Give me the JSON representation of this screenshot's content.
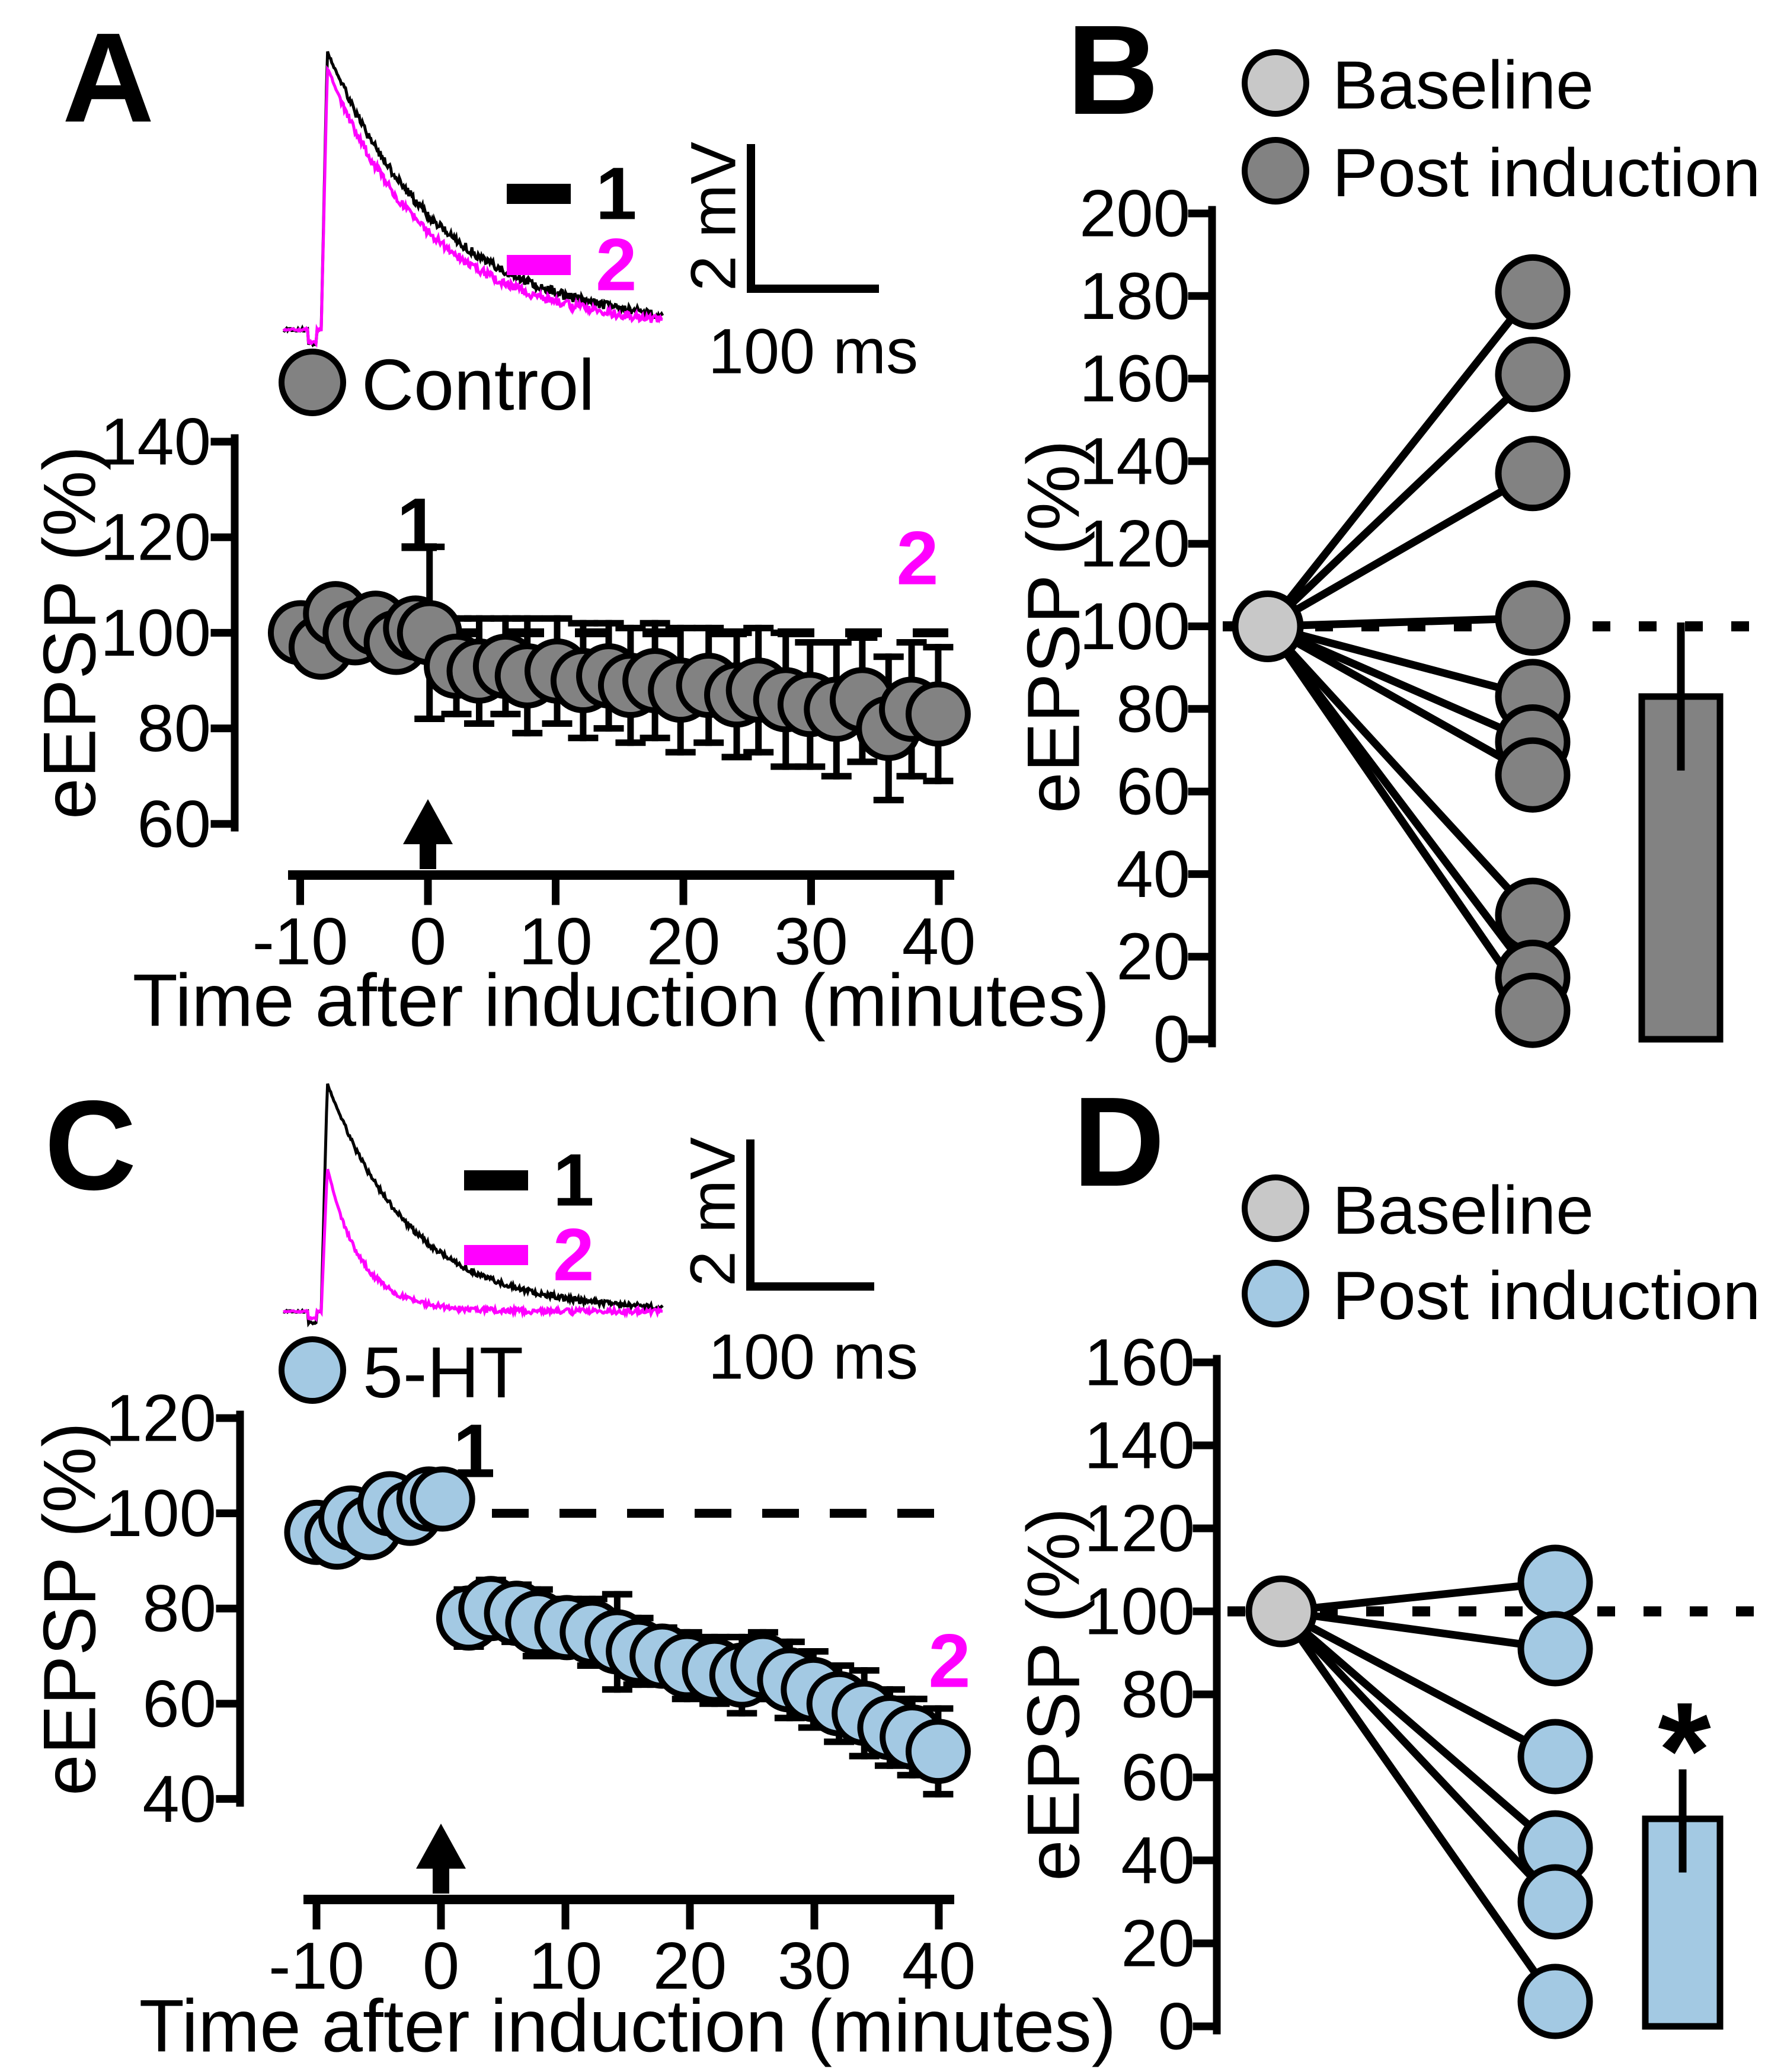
{
  "figure": {
    "panel_letters": [
      "A",
      "B",
      "C",
      "D"
    ]
  },
  "chart_data": [
    {
      "panel": "A",
      "panel_label": "A",
      "kind": "timecourse",
      "type": "scatter",
      "group_label": "Control",
      "marker_color": "#828282",
      "xlabel": "Time after induction (minutes)",
      "ylabel": "eEPSP (%)",
      "xticks": [
        -10,
        0,
        10,
        20,
        30,
        40
      ],
      "yticks": [
        60,
        80,
        100,
        120,
        140
      ],
      "xlim": [
        -10.5,
        40.5
      ],
      "ylim": [
        60,
        140
      ],
      "baseline_pct": 100,
      "arrow_t": 0,
      "annotation_1": "1",
      "annotation_2": "2",
      "inset": {
        "trace_labels": [
          "1",
          "2"
        ],
        "trace_colors": [
          "#000000",
          "#ff00ff"
        ],
        "vscale": "2 mV",
        "hscale": "100 ms",
        "trace2_amp": 0.94,
        "trace2_tau": 0.9
      },
      "series": {
        "t": [
          -10,
          -8.5,
          -7,
          -5.5,
          -4,
          -2.5,
          -1,
          0,
          2,
          4,
          6,
          8,
          10,
          12,
          14,
          16,
          18,
          20,
          22,
          24,
          26,
          28,
          30,
          32,
          34,
          36,
          38,
          40
        ],
        "v": [
          100,
          97,
          104,
          100,
          102,
          98,
          101,
          100,
          93,
          92,
          93,
          91,
          92,
          90,
          91,
          89,
          90,
          88,
          89,
          87,
          88,
          86,
          85,
          84,
          86,
          80,
          84,
          83
        ],
        "err": [
          5,
          5,
          5,
          5,
          5,
          5,
          5,
          18,
          10,
          11,
          10,
          12,
          11,
          12,
          11,
          12,
          12,
          13,
          12,
          13,
          13,
          14,
          13,
          14,
          13,
          15,
          14,
          14
        ]
      }
    },
    {
      "panel": "B",
      "panel_label": "B",
      "kind": "paired",
      "type": "scatter",
      "ylabel": "eEPSP (%)",
      "yticks": [
        0,
        20,
        40,
        60,
        80,
        100,
        120,
        140,
        160,
        180,
        200
      ],
      "ylim": [
        0,
        200
      ],
      "legend": [
        {
          "label": "Baseline",
          "color": "#c8c8c8"
        },
        {
          "label": "Post induction",
          "color": "#828282"
        }
      ],
      "baseline_value": 100,
      "post_values": [
        181,
        161,
        137,
        102,
        83,
        72,
        64,
        30,
        15,
        7
      ],
      "bar": {
        "mean": 83,
        "err_low": 66,
        "err_high": 100,
        "color": "#828282"
      },
      "significance": ""
    },
    {
      "panel": "C",
      "panel_label": "C",
      "kind": "timecourse",
      "type": "scatter",
      "group_label": "5-HT",
      "marker_color": "#a3c9e3",
      "xlabel": "Time after induction (minutes)",
      "ylabel": "eEPSP (%)",
      "xticks": [
        -10,
        0,
        10,
        20,
        30,
        40
      ],
      "yticks": [
        40,
        60,
        80,
        100,
        120
      ],
      "xlim": [
        -10.5,
        40.5
      ],
      "ylim": [
        40,
        120
      ],
      "baseline_pct": 100,
      "arrow_t": 0,
      "annotation_1": "1",
      "annotation_2": "2",
      "inset": {
        "trace_labels": [
          "1",
          "2"
        ],
        "trace_colors": [
          "#000000",
          "#ff00ff"
        ],
        "vscale": "2 mV",
        "hscale": "100 ms",
        "trace2_amp": 0.63,
        "trace2_tau": 0.4
      },
      "series": {
        "t": [
          -10,
          -8.5,
          -7,
          -5.5,
          -4,
          -2.5,
          -1,
          0,
          2,
          4,
          6,
          8,
          10,
          12,
          14,
          16,
          18,
          20,
          22,
          24,
          26,
          28,
          30,
          32,
          34,
          36,
          38,
          40
        ],
        "v": [
          96,
          95,
          99,
          97,
          102,
          100,
          103,
          103,
          78,
          80,
          79,
          77,
          76,
          75,
          73,
          71,
          70,
          68,
          67,
          66,
          68,
          65,
          63,
          60,
          58,
          55,
          53,
          50
        ],
        "err": [
          4,
          4,
          4,
          4,
          4,
          4,
          4,
          4,
          6,
          6,
          6,
          7,
          6,
          7,
          10,
          7,
          6,
          7,
          7,
          8,
          7,
          8,
          8,
          8,
          9,
          8,
          8,
          9
        ]
      }
    },
    {
      "panel": "D",
      "panel_label": "D",
      "kind": "paired",
      "type": "scatter",
      "ylabel": "eEPSP (%)",
      "yticks": [
        0,
        20,
        40,
        60,
        80,
        100,
        120,
        140,
        160
      ],
      "ylim": [
        0,
        160
      ],
      "legend": [
        {
          "label": "Baseline",
          "color": "#c8c8c8"
        },
        {
          "label": "Post induction",
          "color": "#a3c9e3"
        }
      ],
      "baseline_value": 100,
      "post_values": [
        107,
        91,
        65,
        43,
        30,
        6
      ],
      "bar": {
        "mean": 50,
        "err_low": 38,
        "err_high": 61,
        "color": "#a3c9e3"
      },
      "significance": "*"
    }
  ]
}
